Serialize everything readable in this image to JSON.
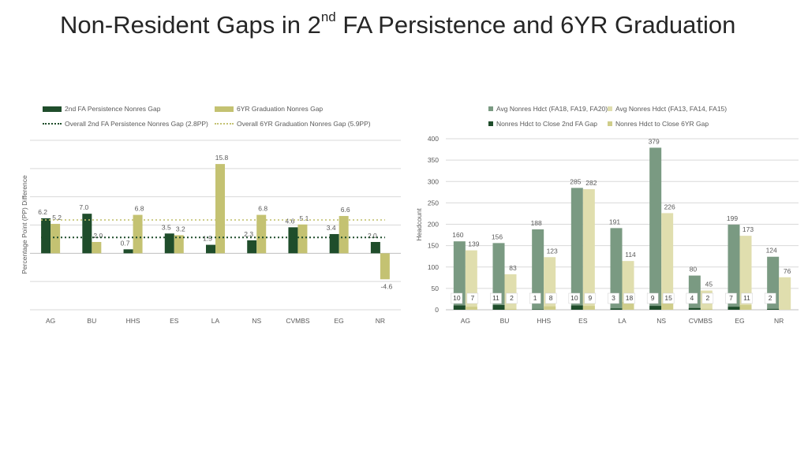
{
  "title": {
    "main": "Non-Resident Gaps in 2",
    "sup": "nd",
    "rest": " FA Persistence and 6YR Graduation"
  },
  "colors": {
    "dark_green": "#1f4d2b",
    "khaki": "#c4c272",
    "gray_green": "#7a9a82",
    "pale_khaki": "#e0deae",
    "mid_green": "#2f6b3c",
    "light_khaki": "#cfcd8a",
    "grid": "#d9d9d9",
    "axis_text": "#595959"
  },
  "chart_data": [
    {
      "type": "bar",
      "title": "",
      "xlabel": "",
      "ylabel": "Percentage Point (PP) Difference",
      "categories": [
        "AG",
        "BU",
        "HHS",
        "ES",
        "LA",
        "NS",
        "CVMBS",
        "EG",
        "NR"
      ],
      "series": [
        {
          "name": "2nd FA Persistence Nonres Gap",
          "values": [
            6.2,
            7.0,
            0.7,
            3.5,
            1.5,
            2.3,
            4.6,
            3.4,
            2.0
          ],
          "labels": [
            "6.2",
            "7.0",
            "0.7",
            "3.5",
            "1.5",
            "2.3",
            "4.6",
            "3.4",
            "2.0"
          ]
        },
        {
          "name": "6YR Graduation Nonres Gap",
          "values": [
            5.2,
            2.0,
            6.8,
            3.2,
            15.8,
            6.8,
            5.1,
            6.6,
            -4.6
          ],
          "labels": [
            "5.2",
            "2.0",
            "6.8",
            "3.2",
            "15.8",
            "6.8",
            "5.1",
            "6.6",
            "-4.6"
          ]
        }
      ],
      "reference_lines": [
        {
          "name": "Overall 2nd FA Persistence Nonres Gap  (2.8PP)",
          "value": 2.8
        },
        {
          "name": "Overall 6YR Graduation Nonres Gap (5.9PP)",
          "value": 5.9
        }
      ],
      "ylim": [
        -10,
        20
      ],
      "grid": true,
      "legend": "top"
    },
    {
      "type": "bar",
      "title": "",
      "xlabel": "",
      "ylabel": "Headcount",
      "categories": [
        "AG",
        "BU",
        "HHS",
        "ES",
        "LA",
        "NS",
        "CVMBS",
        "EG",
        "NR"
      ],
      "series": [
        {
          "name": "Avg Nonres Hdct (FA18, FA19, FA20)",
          "values": [
            160,
            156,
            188,
            285,
            191,
            379,
            80,
            199,
            124
          ],
          "labels": [
            "160",
            "156",
            "188",
            "285",
            "191",
            "379",
            "80",
            "199",
            "124"
          ]
        },
        {
          "name": "Avg Nonres Hdct (FA13, FA14, FA15)",
          "values": [
            139,
            83,
            123,
            282,
            114,
            226,
            45,
            173,
            76
          ],
          "labels": [
            "139",
            "83",
            "123",
            "282",
            "114",
            "226",
            "45",
            "173",
            "76"
          ]
        },
        {
          "name": "Nonres Hdct to Close 2nd FA Gap",
          "values": [
            10,
            11,
            1,
            10,
            3,
            9,
            4,
            7,
            2
          ],
          "labels": [
            "10",
            "11",
            "1",
            "10",
            "3",
            "9",
            "4",
            "7",
            "2"
          ]
        },
        {
          "name": "Nonres Hdct to Close 6YR Gap",
          "values": [
            7,
            2,
            8,
            9,
            18,
            15,
            2,
            11,
            null
          ],
          "labels": [
            "7",
            "2",
            "8",
            "9",
            "18",
            "15",
            "2",
            "11",
            ""
          ]
        }
      ],
      "yticks": [
        "0",
        "50",
        "100",
        "150",
        "200",
        "250",
        "300",
        "350",
        "400"
      ],
      "ylim": [
        0,
        400
      ],
      "grid": true,
      "legend": "top"
    }
  ]
}
